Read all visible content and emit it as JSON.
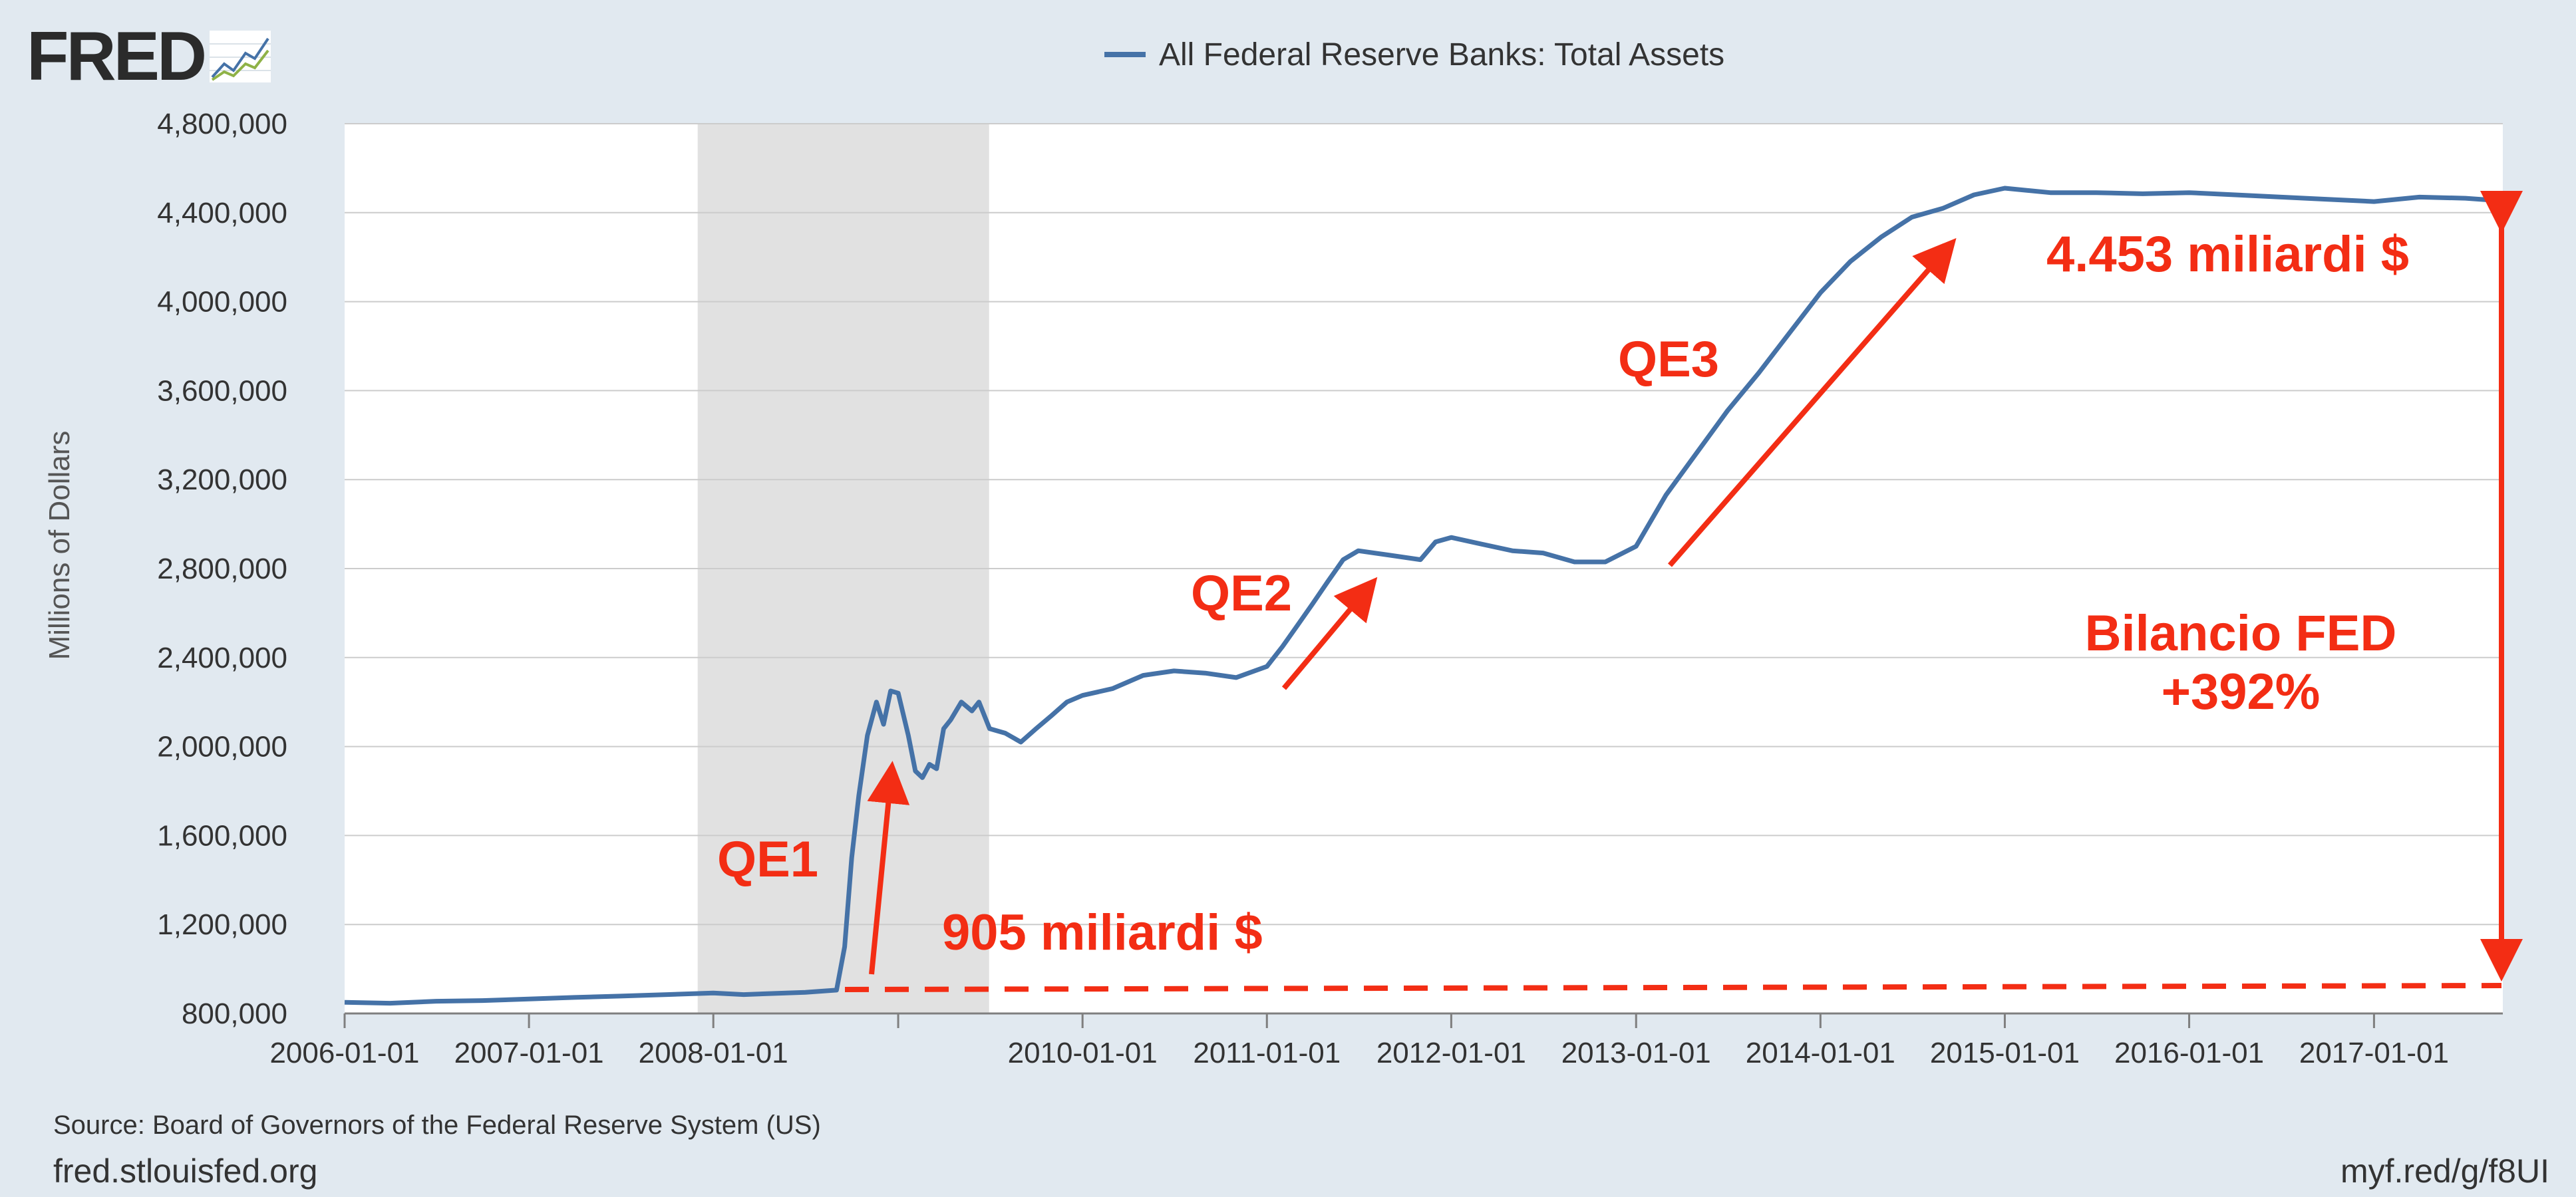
{
  "branding": {
    "logo": "FRED"
  },
  "footer": {
    "source": "Source: Board of Governors of the Federal Reserve System (US)",
    "site": "fred.stlouisfed.org",
    "shortlink": "myf.red/g/f8UI"
  },
  "colors": {
    "line": "#4572a7",
    "annotation": "#f32d14",
    "recession": "#e1e1e1",
    "background": "#e1e9f0"
  },
  "annotations": {
    "qe1": "QE1",
    "qe2": "QE2",
    "qe3": "QE3",
    "start_value": "905 miliardi $",
    "end_value": "4.453 miliardi $",
    "growth_line1": "Bilancio FED",
    "growth_line2": "+392%"
  },
  "chart_data": {
    "type": "line",
    "legend": "top-center",
    "grid": true,
    "ylabel": "Millions of Dollars",
    "ylim": [
      800000,
      4800000
    ],
    "yticks": [
      "800,000",
      "1,200,000",
      "1,600,000",
      "2,000,000",
      "2,400,000",
      "2,800,000",
      "3,200,000",
      "3,600,000",
      "4,000,000",
      "4,400,000",
      "4,800,000"
    ],
    "xticks": [
      "2006-01-01",
      "2007-01-01",
      "2008-01-01",
      "2010-01-01",
      "2011-01-01",
      "2012-01-01",
      "2013-01-01",
      "2014-01-01",
      "2015-01-01",
      "2016-01-01",
      "2017-01-01"
    ],
    "xlim": [
      "2006-01-01",
      "2017-09-13"
    ],
    "recession": {
      "start": "2007-12-01",
      "end": "2009-06-30"
    },
    "series": [
      {
        "name": "All Federal Reserve Banks: Total Assets",
        "points": [
          [
            "2006-01-01",
            850000
          ],
          [
            "2006-04-01",
            846000
          ],
          [
            "2006-07-01",
            855000
          ],
          [
            "2006-10-01",
            858000
          ],
          [
            "2007-01-01",
            865000
          ],
          [
            "2007-04-01",
            872000
          ],
          [
            "2007-07-01",
            878000
          ],
          [
            "2007-10-01",
            885000
          ],
          [
            "2008-01-01",
            892000
          ],
          [
            "2008-03-01",
            885000
          ],
          [
            "2008-05-01",
            890000
          ],
          [
            "2008-07-01",
            895000
          ],
          [
            "2008-09-01",
            905000
          ],
          [
            "2008-09-17",
            1100000
          ],
          [
            "2008-10-01",
            1500000
          ],
          [
            "2008-10-15",
            1780000
          ],
          [
            "2008-11-01",
            2050000
          ],
          [
            "2008-11-19",
            2200000
          ],
          [
            "2008-12-03",
            2100000
          ],
          [
            "2008-12-17",
            2250000
          ],
          [
            "2009-01-01",
            2240000
          ],
          [
            "2009-01-21",
            2050000
          ],
          [
            "2009-02-04",
            1890000
          ],
          [
            "2009-02-18",
            1860000
          ],
          [
            "2009-03-04",
            1920000
          ],
          [
            "2009-03-18",
            1900000
          ],
          [
            "2009-04-01",
            2080000
          ],
          [
            "2009-04-15",
            2120000
          ],
          [
            "2009-05-06",
            2200000
          ],
          [
            "2009-05-27",
            2160000
          ],
          [
            "2009-06-10",
            2200000
          ],
          [
            "2009-07-01",
            2080000
          ],
          [
            "2009-08-01",
            2060000
          ],
          [
            "2009-09-01",
            2020000
          ],
          [
            "2009-10-01",
            2080000
          ],
          [
            "2009-11-01",
            2140000
          ],
          [
            "2009-12-01",
            2200000
          ],
          [
            "2010-01-01",
            2230000
          ],
          [
            "2010-03-01",
            2260000
          ],
          [
            "2010-05-01",
            2320000
          ],
          [
            "2010-07-01",
            2340000
          ],
          [
            "2010-09-01",
            2330000
          ],
          [
            "2010-11-01",
            2310000
          ],
          [
            "2011-01-01",
            2360000
          ],
          [
            "2011-02-01",
            2450000
          ],
          [
            "2011-03-01",
            2540000
          ],
          [
            "2011-04-01",
            2640000
          ],
          [
            "2011-05-01",
            2740000
          ],
          [
            "2011-06-01",
            2840000
          ],
          [
            "2011-07-01",
            2880000
          ],
          [
            "2011-09-01",
            2860000
          ],
          [
            "2011-11-01",
            2840000
          ],
          [
            "2011-12-01",
            2920000
          ],
          [
            "2012-01-01",
            2940000
          ],
          [
            "2012-03-01",
            2910000
          ],
          [
            "2012-05-01",
            2880000
          ],
          [
            "2012-07-01",
            2870000
          ],
          [
            "2012-09-01",
            2830000
          ],
          [
            "2012-11-01",
            2830000
          ],
          [
            "2013-01-01",
            2900000
          ],
          [
            "2013-03-01",
            3130000
          ],
          [
            "2013-05-01",
            3320000
          ],
          [
            "2013-07-01",
            3510000
          ],
          [
            "2013-09-01",
            3680000
          ],
          [
            "2013-11-01",
            3860000
          ],
          [
            "2014-01-01",
            4040000
          ],
          [
            "2014-03-01",
            4180000
          ],
          [
            "2014-05-01",
            4290000
          ],
          [
            "2014-07-01",
            4380000
          ],
          [
            "2014-09-01",
            4420000
          ],
          [
            "2014-11-01",
            4480000
          ],
          [
            "2015-01-01",
            4510000
          ],
          [
            "2015-04-01",
            4490000
          ],
          [
            "2015-07-01",
            4490000
          ],
          [
            "2015-10-01",
            4485000
          ],
          [
            "2016-01-01",
            4490000
          ],
          [
            "2016-04-01",
            4480000
          ],
          [
            "2016-07-01",
            4470000
          ],
          [
            "2016-10-01",
            4460000
          ],
          [
            "2017-01-01",
            4450000
          ],
          [
            "2017-04-01",
            4470000
          ],
          [
            "2017-07-01",
            4465000
          ],
          [
            "2017-09-13",
            4453000
          ]
        ]
      }
    ]
  }
}
